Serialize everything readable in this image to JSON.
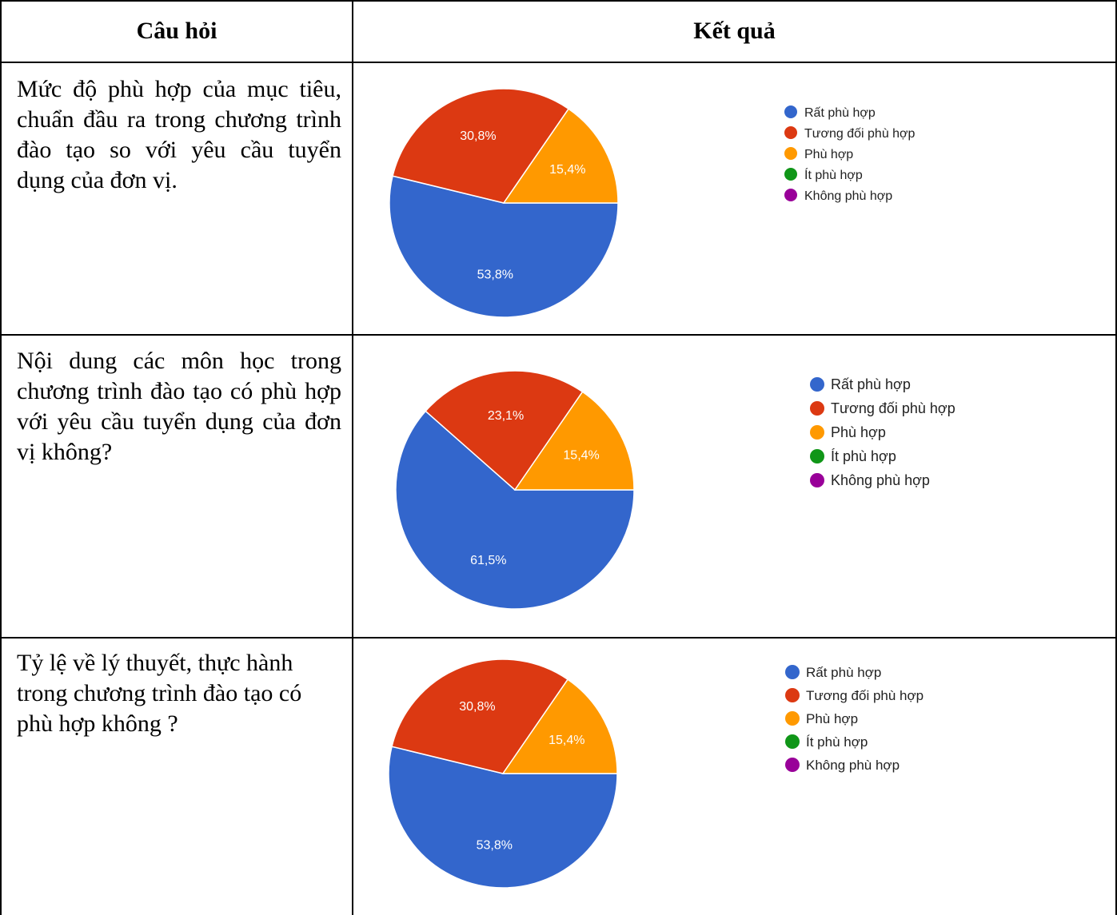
{
  "table": {
    "header_question": "Câu hỏi",
    "header_result": "Kết quả"
  },
  "rows": [
    {
      "question": "Mức độ phù hợp của mục tiêu, chuẩn đầu ra trong chương trình đào tạo so với yêu cầu tuyển dụng của đơn vị."
    },
    {
      "question": "Nội dung các môn học trong chương trình đào tạo có phù hợp với yêu cầu tuyển dụng của đơn vị không?"
    },
    {
      "question": "Tỷ lệ về lý thuyết, thực hành trong chương trình đào tạo có phù hợp không ?"
    }
  ],
  "colors": {
    "Rất phù hợp": "#3366cc",
    "Tương đối phù hợp": "#dc3912",
    "Phù hợp": "#ff9900",
    "Ít phù hợp": "#109618",
    "Không phù hợp": "#990099"
  },
  "chart_data": [
    {
      "type": "pie",
      "categories": [
        "Rất phù hợp",
        "Tương đối phù hợp",
        "Phù hợp",
        "Ít phù hợp",
        "Không phù hợp"
      ],
      "values": [
        53.8,
        30.8,
        15.4,
        0,
        0
      ],
      "labels": [
        "53,8%",
        "30,8%",
        "15,4%",
        "",
        ""
      ],
      "legend": "right"
    },
    {
      "type": "pie",
      "categories": [
        "Rất phù hợp",
        "Tương đối phù hợp",
        "Phù hợp",
        "Ít phù hợp",
        "Không phù hợp"
      ],
      "values": [
        61.5,
        23.1,
        15.4,
        0,
        0
      ],
      "labels": [
        "61,5%",
        "23,1%",
        "15,4%",
        "",
        ""
      ],
      "legend": "right"
    },
    {
      "type": "pie",
      "categories": [
        "Rất phù hợp",
        "Tương đối phù hợp",
        "Phù hợp",
        "Ít phù hợp",
        "Không phù hợp"
      ],
      "values": [
        53.8,
        30.8,
        15.4,
        0,
        0
      ],
      "labels": [
        "53,8%",
        "30,8%",
        "15,4%",
        "",
        ""
      ],
      "legend": "right"
    }
  ]
}
